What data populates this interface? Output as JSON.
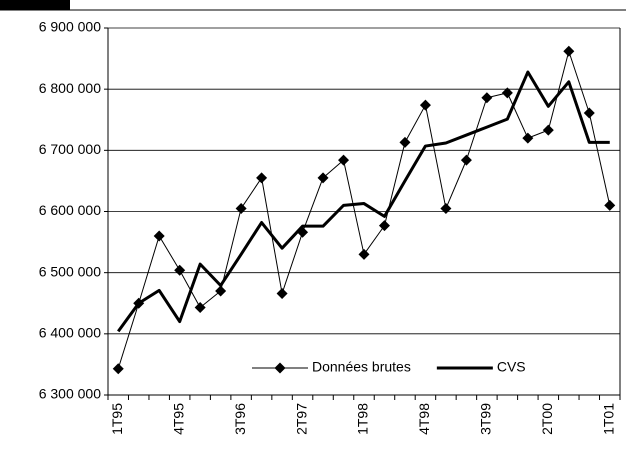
{
  "chart_data": {
    "type": "line",
    "categories": [
      "1T95",
      null,
      null,
      "4T95",
      null,
      null,
      "3T96",
      null,
      null,
      "2T97",
      null,
      null,
      "1T98",
      null,
      null,
      "4T98",
      null,
      null,
      "3T99",
      null,
      null,
      "2T00",
      null,
      null,
      "1T01"
    ],
    "series": [
      {
        "name": "Données brutes",
        "color": "#000000",
        "marker": "diamond",
        "line_width": 1,
        "values": [
          6343000,
          6450000,
          6560000,
          6504000,
          6443000,
          6470000,
          6605000,
          6655000,
          6466000,
          6566000,
          6655000,
          6684000,
          6530000,
          6577000,
          6713000,
          6774000,
          6605000,
          6684000,
          6786000,
          6794000,
          6720000,
          6733000,
          6862000,
          6761000,
          6610000
        ]
      },
      {
        "name": "CVS",
        "color": "#000000",
        "marker": "none",
        "line_width": 3,
        "values": [
          6404000,
          6450000,
          6471000,
          6420000,
          6514000,
          6479000,
          6530000,
          6582000,
          6540000,
          6576000,
          6576000,
          6610000,
          6613000,
          6592000,
          6650000,
          6707000,
          6712000,
          6725000,
          6738000,
          6751000,
          6828000,
          6772000,
          6812000,
          6713000,
          6713000
        ]
      }
    ],
    "ylim": [
      6300000,
      6900000
    ],
    "yticks": [
      {
        "value": 6300000,
        "label": "6 300 000"
      },
      {
        "value": 6400000,
        "label": "6 400 000"
      },
      {
        "value": 6500000,
        "label": "6 500 000"
      },
      {
        "value": 6600000,
        "label": "6 600 000"
      },
      {
        "value": 6700000,
        "label": "6 700 000"
      },
      {
        "value": 6800000,
        "label": "6 800 000"
      },
      {
        "value": 6900000,
        "label": "6 900 000"
      }
    ],
    "grid": true,
    "legend": "lower right"
  }
}
